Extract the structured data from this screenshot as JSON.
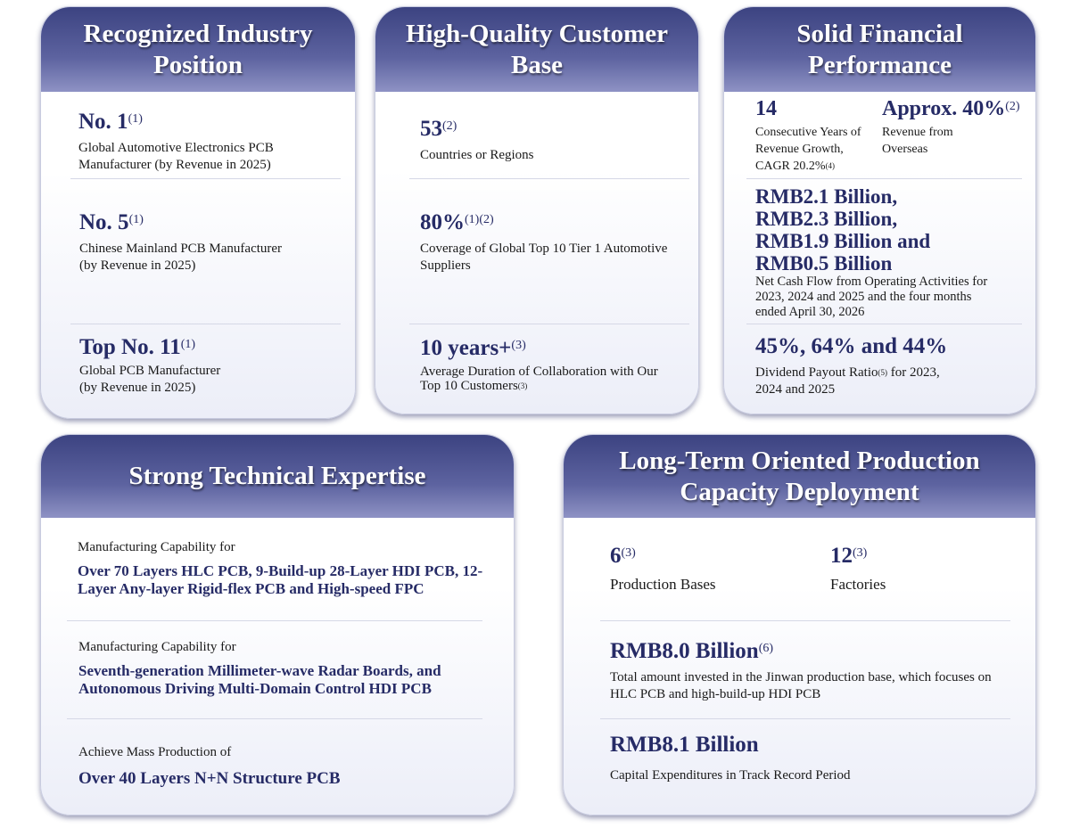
{
  "cards": [
    {
      "title": "Recognized Industry Position",
      "items": [
        {
          "value": "No. 1",
          "note": "(1)",
          "text": "Global Automotive Electronics PCB Manufacturer (by Revenue in 2025)"
        },
        {
          "value": "No. 5",
          "note": "(1)",
          "text": "Chinese Mainland PCB Manufacturer (by Revenue in 2025)"
        },
        {
          "value": "Top No. 11",
          "note": "(1)",
          "text": "Global PCB Manufacturer (by Revenue in 2025)"
        }
      ]
    },
    {
      "title": "High-Quality Customer Base",
      "items": [
        {
          "value": "53",
          "note": "(2)",
          "text": "Countries or Regions"
        },
        {
          "value": "80%",
          "note": "(1)(2)",
          "text": "Coverage of Global Top 10 Tier 1 Automotive Suppliers"
        },
        {
          "value": "10 years+",
          "note": "(3)",
          "text": "Average Duration of Collaboration with Our Top 10 Customers",
          "text_note": "(3)"
        }
      ]
    },
    {
      "title": "Solid Financial Performance",
      "items": [
        {
          "value": "14",
          "text": "Consecutive Years of Revenue Growth, CAGR 20.2%",
          "text_note": "(4)"
        },
        {
          "value": "Approx. 40%",
          "note": "(2)",
          "text": "Revenue from Overseas"
        },
        {
          "value": "RMB2.1 Billion, RMB2.3 Billion, RMB1.9 Billion and RMB0.5 Billion",
          "text": "Net Cash Flow from Operating Activities for 2023, 2024 and 2025 and the four months ended April 30, 2026"
        },
        {
          "value": "45%, 64% and 44%",
          "text": "Dividend Payout Ratio",
          "text_note": "(5)",
          "text_after": "for 2023, 2024 and 2025"
        }
      ]
    },
    {
      "title": "Strong Technical Expertise",
      "items": [
        {
          "text": "Manufacturing Capability for",
          "value": "Over 70 Layers HLC PCB, 9-Build-up 28-Layer HDI PCB, 12-Layer Any-layer Rigid-flex PCB and High-speed FPC"
        },
        {
          "text": "Manufacturing Capability for",
          "value": "Seventh-generation Millimeter-wave Radar Boards, and Autonomous Driving Multi-Domain Control HDI PCB"
        },
        {
          "text": "Achieve Mass Production of",
          "value": "Over 40 Layers N+N Structure PCB"
        }
      ]
    },
    {
      "title": "Long-Term Oriented Production Capacity Deployment",
      "items": [
        {
          "value": "6",
          "note": "(3)",
          "text": "Production Bases"
        },
        {
          "value": "12",
          "note": "(3)",
          "text": "Factories"
        },
        {
          "value": "RMB8.0 Billion",
          "note": "(6)",
          "text": "Total amount invested in the Jinwan production base, which focuses on HLC PCB and high-build-up HDI PCB"
        },
        {
          "value": "RMB8.1 Billion",
          "text": "Capital Expenditures in Track Record Period"
        }
      ]
    }
  ]
}
